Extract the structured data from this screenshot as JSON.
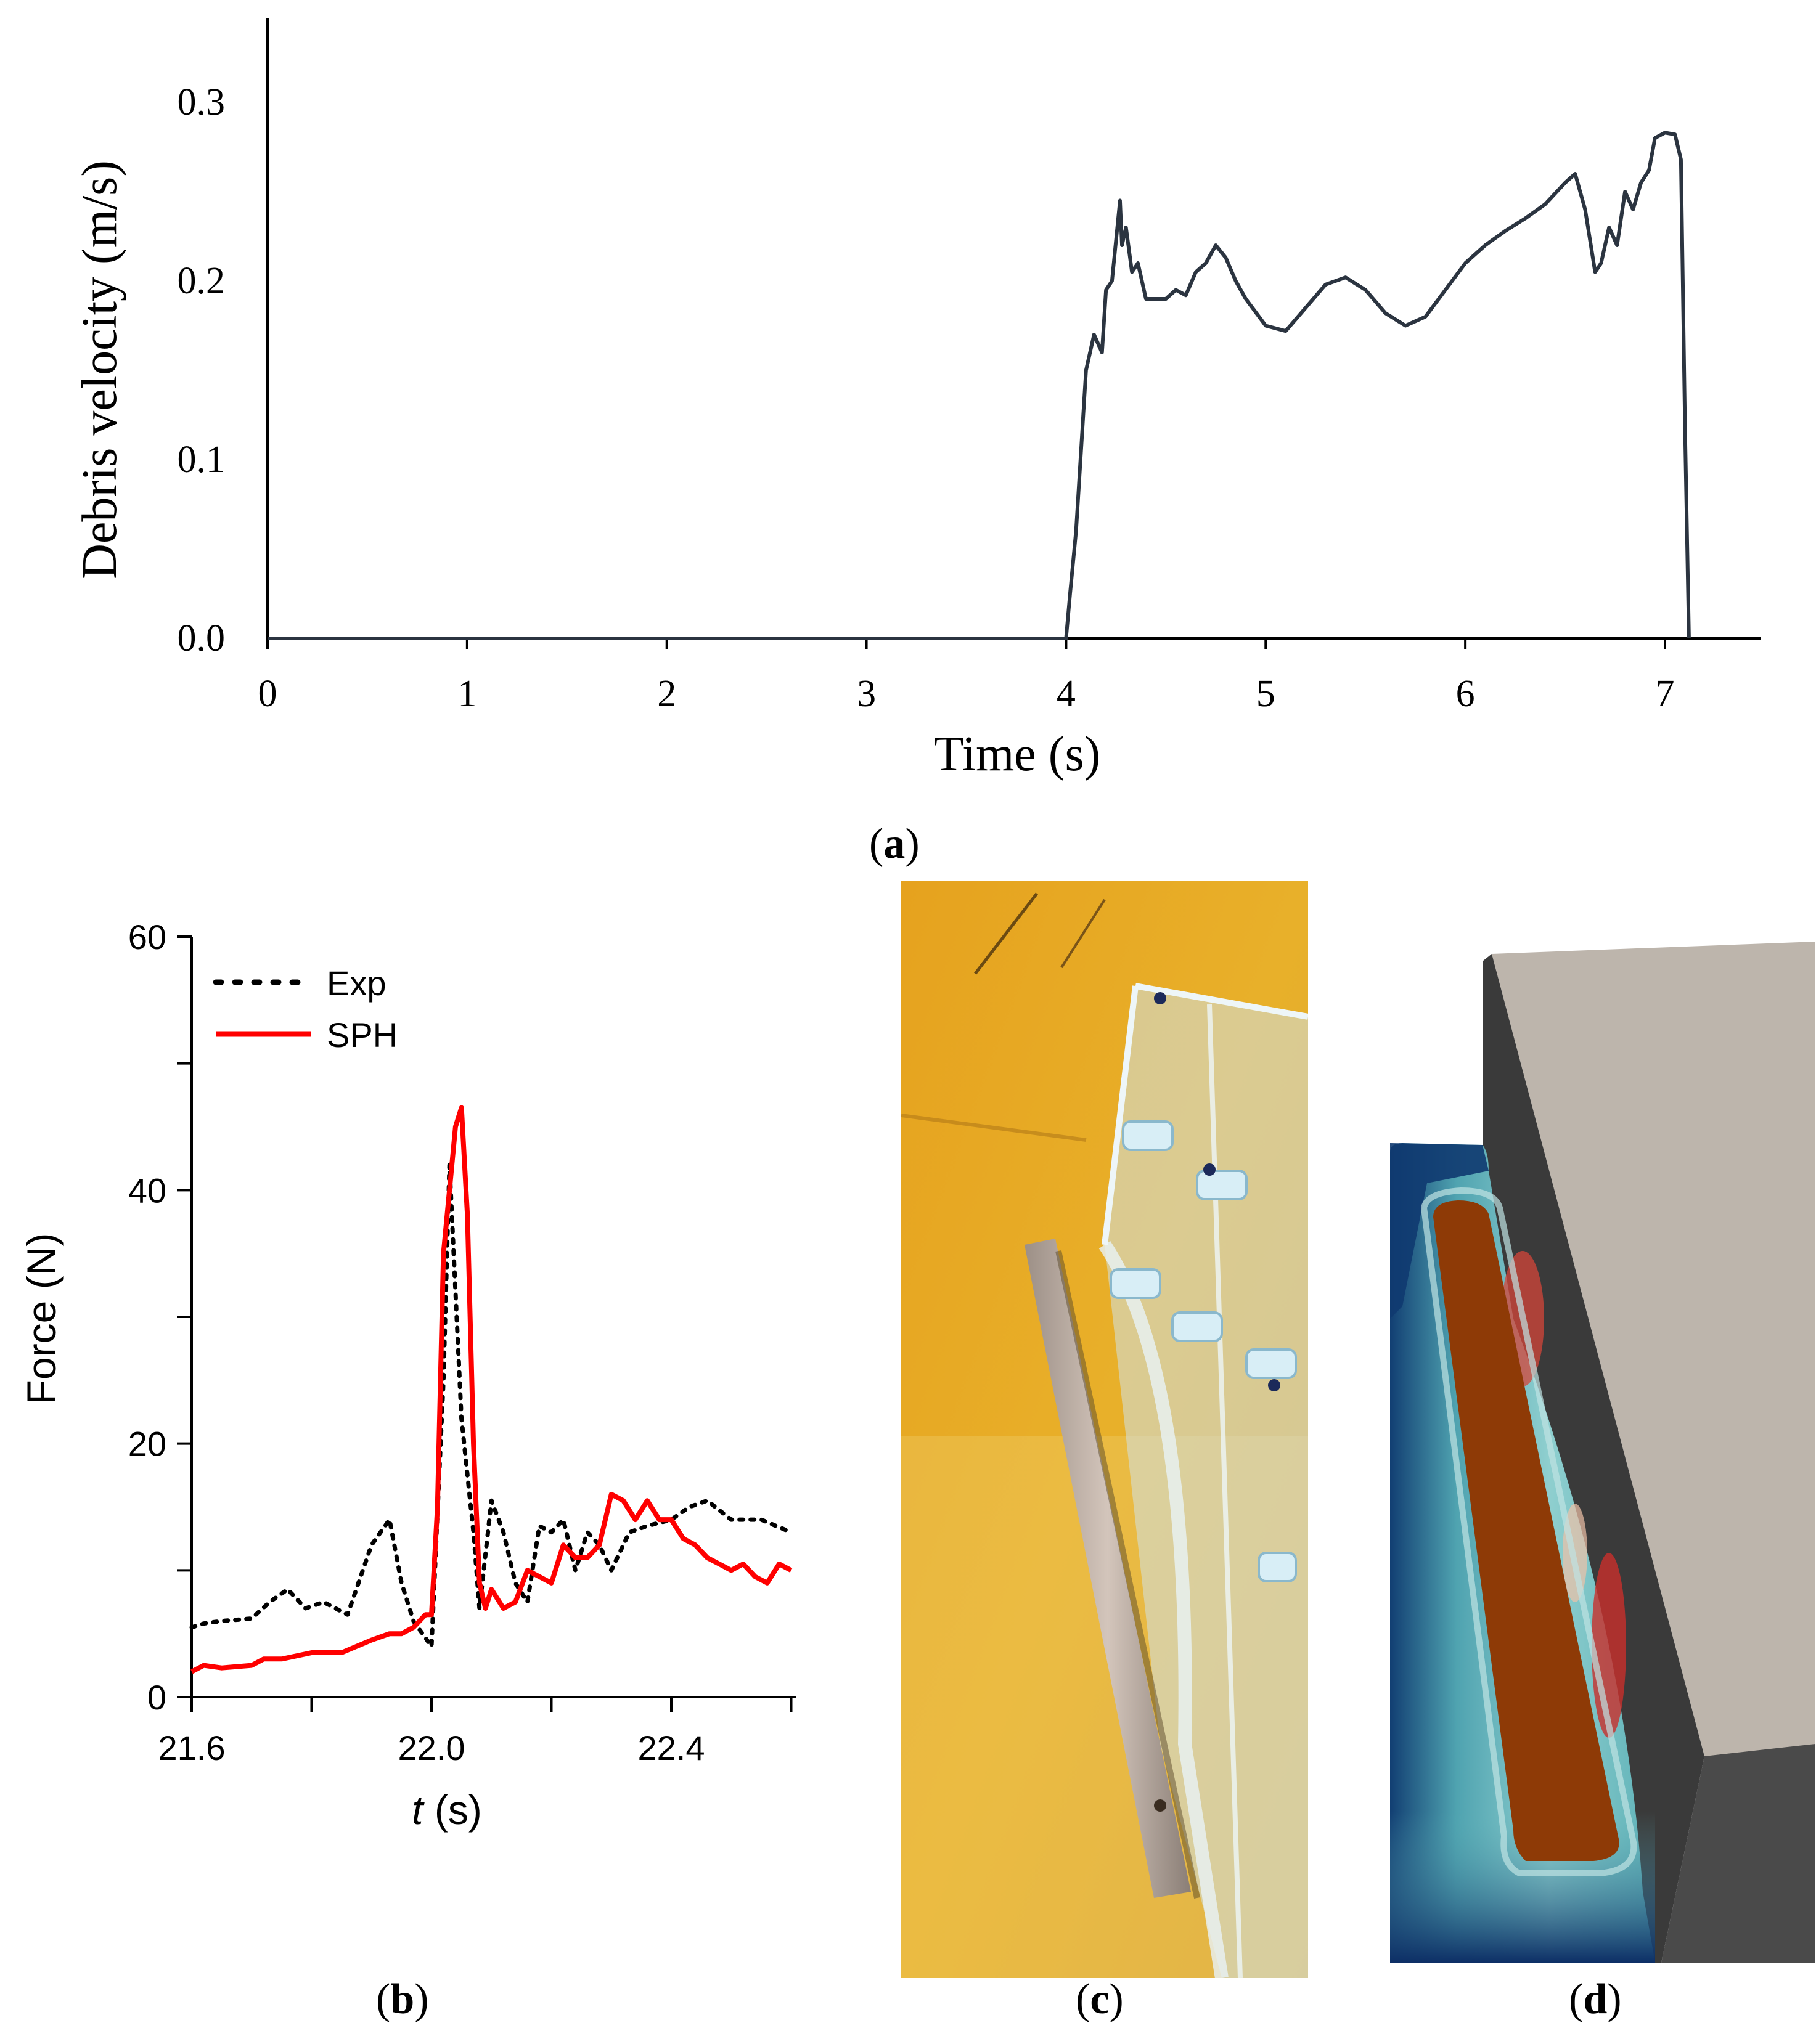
{
  "panel_labels": {
    "a": "a",
    "b": "b",
    "c": "c",
    "d": "d"
  },
  "chart_data": [
    {
      "id": "a",
      "type": "line",
      "title": "",
      "xlabel": "Time (s)",
      "ylabel": "Debris velocity (m/s)",
      "xlim": [
        0,
        7.5
      ],
      "ylim": [
        0,
        0.35
      ],
      "x_ticks": [
        "0",
        "1",
        "2",
        "3",
        "4",
        "5",
        "6",
        "7"
      ],
      "y_ticks": [
        "0.0",
        "0.1",
        "0.2",
        "0.3"
      ],
      "series": [
        {
          "color": "#2b3440",
          "x": [
            0,
            4.0,
            4.02,
            4.05,
            4.1,
            4.14,
            4.18,
            4.2,
            4.23,
            4.27,
            4.28,
            4.3,
            4.33,
            4.36,
            4.4,
            4.45,
            4.5,
            4.55,
            4.6,
            4.65,
            4.7,
            4.75,
            4.8,
            4.85,
            4.9,
            5.0,
            5.1,
            5.2,
            5.3,
            5.4,
            5.5,
            5.6,
            5.7,
            5.8,
            5.9,
            6.0,
            6.1,
            6.2,
            6.3,
            6.4,
            6.5,
            6.55,
            6.6,
            6.65,
            6.68,
            6.72,
            6.76,
            6.8,
            6.84,
            6.88,
            6.92,
            6.95,
            7.0,
            7.05,
            7.08,
            7.1,
            7.12
          ],
          "y": [
            0,
            0,
            0.025,
            0.06,
            0.15,
            0.17,
            0.16,
            0.195,
            0.2,
            0.245,
            0.22,
            0.23,
            0.205,
            0.21,
            0.19,
            0.19,
            0.19,
            0.195,
            0.192,
            0.205,
            0.21,
            0.22,
            0.213,
            0.2,
            0.19,
            0.175,
            0.172,
            0.185,
            0.198,
            0.202,
            0.195,
            0.182,
            0.175,
            0.18,
            0.195,
            0.21,
            0.22,
            0.228,
            0.235,
            0.243,
            0.255,
            0.26,
            0.24,
            0.205,
            0.21,
            0.23,
            0.22,
            0.25,
            0.24,
            0.255,
            0.262,
            0.28,
            0.283,
            0.282,
            0.268,
            0.12,
            0
          ]
        }
      ]
    },
    {
      "id": "b",
      "type": "line",
      "title": "",
      "xlabel_italic": "t",
      "xlabel_rest": " (s)",
      "ylabel": "Force (N)",
      "xlim": [
        21.6,
        22.6
      ],
      "ylim": [
        0,
        60
      ],
      "x_ticks": [
        "21.6",
        "22.0",
        "22.4"
      ],
      "x_tick_values": [
        21.6,
        22.0,
        22.4
      ],
      "y_ticks": [
        "0",
        "20",
        "40",
        "60"
      ],
      "y_tick_values": [
        0,
        20,
        40,
        60
      ],
      "legend_position": "top-left",
      "series": [
        {
          "name": "Exp",
          "color": "#000000",
          "style": "dotted",
          "x": [
            21.6,
            21.62,
            21.65,
            21.7,
            21.73,
            21.76,
            21.79,
            21.82,
            21.86,
            21.9,
            21.93,
            21.95,
            21.97,
            22.0,
            22.02,
            22.03,
            22.05,
            22.07,
            22.08,
            22.1,
            22.12,
            22.14,
            22.16,
            22.18,
            22.2,
            22.22,
            22.24,
            22.26,
            22.28,
            22.3,
            22.33,
            22.36,
            22.4,
            22.43,
            22.46,
            22.5,
            22.55,
            22.6
          ],
          "y": [
            5.5,
            5.8,
            6,
            6.2,
            7.5,
            8.5,
            7,
            7.5,
            6.5,
            12,
            14,
            9,
            6,
            4,
            25,
            42,
            22,
            13,
            7,
            15.5,
            13,
            9,
            7.5,
            13.5,
            13,
            14,
            10,
            13,
            12,
            10,
            13,
            13.5,
            14,
            15,
            15.5,
            14,
            14,
            13
          ]
        },
        {
          "name": "SPH",
          "color": "#ff0000",
          "style": "solid",
          "x": [
            21.6,
            21.62,
            21.65,
            21.7,
            21.72,
            21.75,
            21.8,
            21.85,
            21.9,
            21.93,
            21.95,
            21.97,
            21.99,
            22.0,
            22.01,
            22.02,
            22.03,
            22.04,
            22.05,
            22.06,
            22.07,
            22.08,
            22.09,
            22.1,
            22.12,
            22.14,
            22.16,
            22.18,
            22.2,
            22.22,
            22.24,
            22.26,
            22.28,
            22.3,
            22.32,
            22.34,
            22.36,
            22.38,
            22.4,
            22.42,
            22.44,
            22.46,
            22.48,
            22.5,
            22.52,
            22.54,
            22.56,
            22.58,
            22.6
          ],
          "y": [
            2,
            2.5,
            2.3,
            2.5,
            3,
            3,
            3.5,
            3.5,
            4.5,
            5,
            5,
            5.5,
            6.5,
            6.5,
            15,
            35,
            40,
            45,
            46.5,
            38,
            20,
            9,
            7,
            8.5,
            7,
            7.5,
            10,
            9.5,
            9,
            12,
            11,
            11,
            12,
            16,
            15.5,
            14,
            15.5,
            14,
            14,
            12.5,
            12,
            11,
            10.5,
            10,
            10.5,
            9.5,
            9,
            10.5,
            10
          ]
        }
      ]
    }
  ]
}
